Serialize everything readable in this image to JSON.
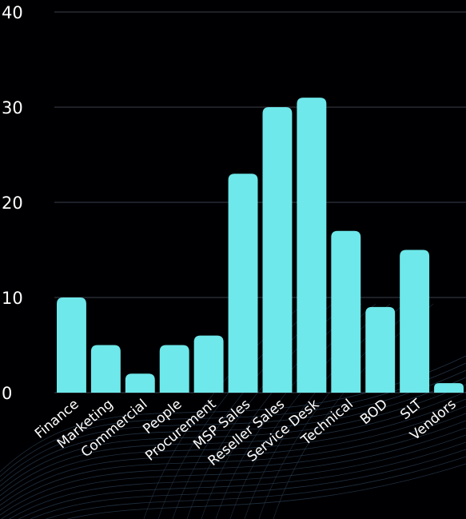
{
  "chart_data": {
    "type": "bar",
    "categories": [
      "Finance",
      "Marketing",
      "Commercial",
      "People",
      "Procurement",
      "MSP Sales",
      "Reseller Sales",
      "Service Desk",
      "Technical",
      "BOD",
      "SLT",
      "Vendors"
    ],
    "values": [
      10,
      5,
      2,
      5,
      6,
      23,
      30,
      31,
      17,
      9,
      15,
      1
    ],
    "title": "",
    "xlabel": "",
    "ylabel": "",
    "ylim": [
      0,
      40
    ],
    "yticks": [
      0,
      10,
      20,
      30,
      40
    ],
    "grid": true,
    "colors": {
      "bar": "#6ee8ea",
      "grid": "#3b3f4a",
      "text": "#ffffff",
      "background": "#000003",
      "wave": "#3a5870"
    }
  }
}
